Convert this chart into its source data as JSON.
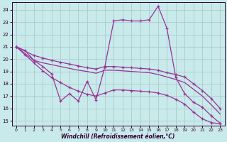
{
  "xlabel": "Windchill (Refroidissement éolien,°C)",
  "background_color": "#c8eaea",
  "line_color": "#993399",
  "grid_color": "#aacccc",
  "xlim": [
    -0.5,
    23.5
  ],
  "ylim": [
    14.6,
    24.6
  ],
  "xticks": [
    0,
    1,
    2,
    3,
    4,
    5,
    6,
    7,
    8,
    9,
    10,
    11,
    12,
    13,
    14,
    15,
    16,
    17,
    18,
    19,
    20,
    21,
    22,
    23
  ],
  "yticks": [
    15,
    16,
    17,
    18,
    19,
    20,
    21,
    22,
    23,
    24
  ],
  "line1_x": [
    0,
    1,
    2,
    3,
    4,
    5,
    6,
    7,
    8,
    9,
    10,
    11,
    12,
    13,
    14,
    15,
    16,
    17,
    18,
    19,
    20,
    21,
    22,
    23
  ],
  "line1_y": [
    21.0,
    20.7,
    19.9,
    19.4,
    18.8,
    16.6,
    17.2,
    16.6,
    18.2,
    16.7,
    19.4,
    23.1,
    23.2,
    23.1,
    23.1,
    23.2,
    24.3,
    22.5,
    18.5,
    17.2,
    16.5,
    16.1,
    15.4,
    14.8
  ],
  "line2_x": [
    0,
    2,
    3,
    4,
    5,
    6,
    7,
    8,
    9,
    10,
    11,
    12,
    13,
    14,
    15,
    16,
    17,
    18,
    19,
    20,
    21,
    22,
    23
  ],
  "line2_y": [
    21.0,
    20.3,
    20.1,
    19.9,
    19.75,
    19.6,
    19.45,
    19.3,
    19.2,
    19.4,
    19.4,
    19.35,
    19.3,
    19.25,
    19.2,
    19.1,
    18.9,
    18.75,
    18.55,
    18.0,
    17.45,
    16.8,
    16.0
  ],
  "line3_x": [
    0,
    2,
    3,
    4,
    5,
    6,
    7,
    8,
    9,
    10,
    11,
    12,
    13,
    14,
    15,
    16,
    17,
    18,
    19,
    20,
    21,
    22,
    23
  ],
  "line3_y": [
    21.0,
    19.9,
    19.7,
    19.55,
    19.4,
    19.25,
    19.1,
    19.0,
    18.85,
    19.1,
    19.1,
    19.05,
    19.0,
    18.95,
    18.9,
    18.75,
    18.55,
    18.35,
    18.1,
    17.55,
    17.0,
    16.3,
    15.55
  ],
  "line4_x": [
    0,
    1,
    2,
    3,
    4,
    5,
    6,
    7,
    8,
    9,
    10,
    11,
    12,
    13,
    14,
    15,
    16,
    17,
    18,
    19,
    20,
    21,
    22,
    23
  ],
  "line4_y": [
    21.0,
    20.35,
    19.7,
    19.05,
    18.5,
    18.1,
    17.7,
    17.4,
    17.15,
    17.0,
    17.25,
    17.5,
    17.5,
    17.45,
    17.4,
    17.35,
    17.25,
    17.05,
    16.75,
    16.35,
    15.7,
    15.15,
    14.85,
    14.75
  ]
}
